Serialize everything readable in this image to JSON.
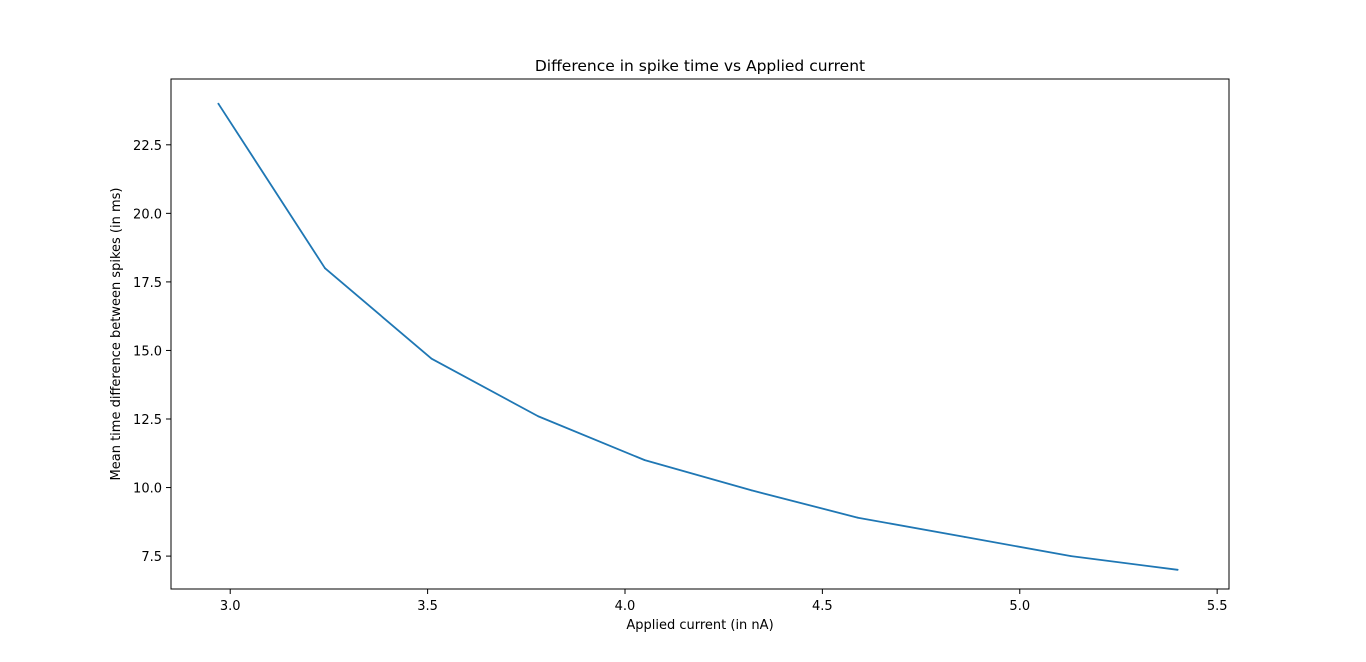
{
  "chart_data": {
    "type": "line",
    "title": "Difference in spike time vs Applied current",
    "xlabel": "Applied current (in nA)",
    "ylabel": "Mean time difference between spikes (in ms)",
    "xlim": [
      2.85,
      5.53
    ],
    "ylim": [
      6.3,
      24.9
    ],
    "xticks": [
      3.0,
      3.5,
      4.0,
      4.5,
      5.0,
      5.5
    ],
    "xtick_labels": [
      "3.0",
      "3.5",
      "4.0",
      "4.5",
      "5.0",
      "5.5"
    ],
    "yticks": [
      7.5,
      10.0,
      12.5,
      15.0,
      17.5,
      20.0,
      22.5
    ],
    "ytick_labels": [
      "7.5",
      "10.0",
      "12.5",
      "15.0",
      "17.5",
      "20.0",
      "22.5"
    ],
    "grid": false,
    "series": [
      {
        "color": "#1f77b4",
        "x": [
          2.97,
          3.24,
          3.51,
          3.78,
          4.05,
          4.32,
          4.59,
          4.86,
          5.13,
          5.4
        ],
        "y": [
          24.0,
          18.0,
          14.7,
          12.6,
          11.0,
          9.9,
          8.9,
          8.2,
          7.5,
          7.0
        ]
      }
    ]
  }
}
